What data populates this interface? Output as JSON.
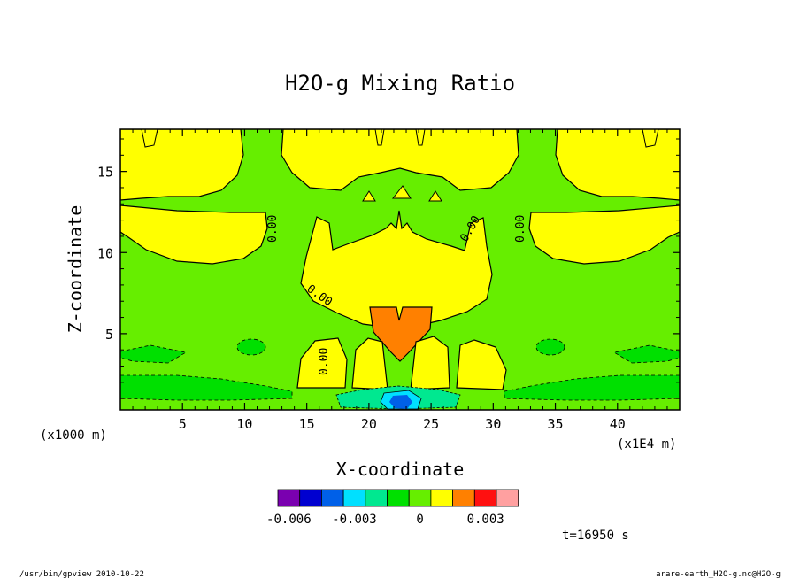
{
  "chart_data": {
    "type": "heatmap",
    "title": "H2O-g Mixing Ratio",
    "xlabel": "X-coordinate",
    "ylabel": "Z-coordinate",
    "x_units": "(x1E4 m)",
    "y_units": "(x1000 m)",
    "xlim": [
      0,
      45
    ],
    "ylim": [
      0.3,
      17.6
    ],
    "x_ticks": [
      5,
      10,
      15,
      20,
      25,
      30,
      35,
      40
    ],
    "y_ticks": [
      5,
      10,
      15
    ],
    "contour_labels": [
      "0.00",
      "0.00",
      "0.00",
      "0.00",
      "0.00"
    ],
    "colorbar": {
      "colors": [
        "#7a00b0",
        "#0000d0",
        "#0060e8",
        "#00e0ff",
        "#00e890",
        "#00e000",
        "#66ee00",
        "#ffff00",
        "#ff8000",
        "#ff1010",
        "#ffa0a0"
      ],
      "tick_values": [
        -0.006,
        -0.003,
        0,
        0.003
      ],
      "tick_labels": [
        "-0.006",
        "-0.003",
        "0",
        "0.003"
      ]
    },
    "time_label": "t=16950 s",
    "footer_left": "/usr/bin/gpview   2010-10-22",
    "footer_right": "arare-earth_H2O-g.nc@H2O-g"
  }
}
